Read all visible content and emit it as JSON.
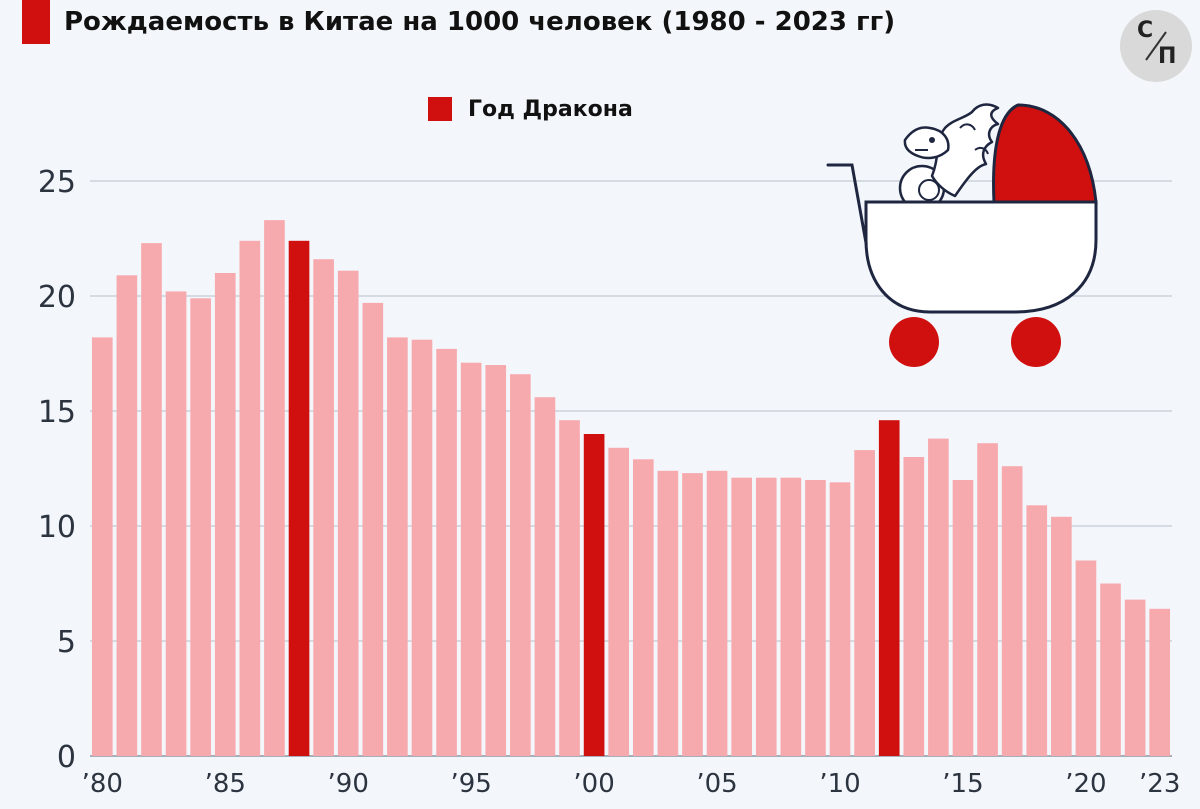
{
  "title": "Рождаемость в Китае на 1000 человек (1980 - 2023 гг)",
  "logo": {
    "top": "С",
    "bottom": "П"
  },
  "colors": {
    "highlight": "#d0100f",
    "normal": "#f7aaae",
    "grid": "#b7c0cc",
    "text": "#2c3440"
  },
  "illustration": {
    "icon": "dragon-in-baby-carriage-icon"
  },
  "chart_data": {
    "type": "bar",
    "legend": [
      {
        "label": "Год Дракона",
        "color": "#d0100f"
      }
    ],
    "ylim": [
      0,
      25
    ],
    "yticks": [
      0,
      5,
      10,
      15,
      20,
      25
    ],
    "x": [
      1980,
      1981,
      1982,
      1983,
      1984,
      1985,
      1986,
      1987,
      1988,
      1989,
      1990,
      1991,
      1992,
      1993,
      1994,
      1995,
      1996,
      1997,
      1998,
      1999,
      2000,
      2001,
      2002,
      2003,
      2004,
      2005,
      2006,
      2007,
      2008,
      2009,
      2010,
      2011,
      2012,
      2013,
      2014,
      2015,
      2016,
      2017,
      2018,
      2019,
      2020,
      2021,
      2022,
      2023
    ],
    "values": [
      18.2,
      20.9,
      22.3,
      20.2,
      19.9,
      21.0,
      22.4,
      23.3,
      22.4,
      21.6,
      21.1,
      19.7,
      18.2,
      18.1,
      17.7,
      17.1,
      17.0,
      16.6,
      15.6,
      14.6,
      14.0,
      13.4,
      12.9,
      12.4,
      12.3,
      12.4,
      12.1,
      12.1,
      12.1,
      12.0,
      11.9,
      13.3,
      14.6,
      13.0,
      13.8,
      12.0,
      13.6,
      12.6,
      10.9,
      10.4,
      8.5,
      7.5,
      6.8,
      6.4
    ],
    "highlight_years": [
      1988,
      2000,
      2012
    ],
    "x_tick_labels": [
      {
        "year": 1980,
        "label": "’80"
      },
      {
        "year": 1985,
        "label": "’85"
      },
      {
        "year": 1990,
        "label": "’90"
      },
      {
        "year": 1995,
        "label": "’95"
      },
      {
        "year": 2000,
        "label": "’00"
      },
      {
        "year": 2005,
        "label": "’05"
      },
      {
        "year": 2010,
        "label": "’10"
      },
      {
        "year": 2015,
        "label": "’15"
      },
      {
        "year": 2020,
        "label": "’20"
      },
      {
        "year": 2023,
        "label": "’23"
      }
    ]
  }
}
